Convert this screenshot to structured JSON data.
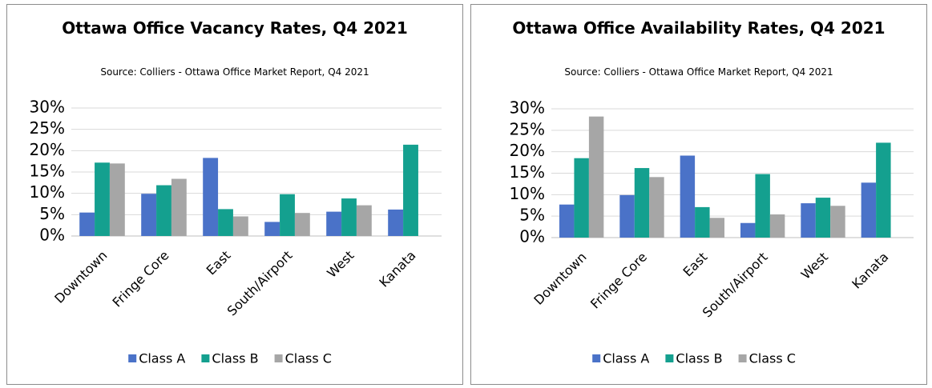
{
  "chart_data": [
    {
      "type": "bar",
      "title": "Ottawa Office Vacancy Rates, Q4 2021",
      "subtitle": "Source: Colliers - Ottawa Office Market Report, Q4 2021",
      "categories": [
        "Downtown",
        "Fringe Core",
        "East",
        "South/Airport",
        "West",
        "Kanata"
      ],
      "series": [
        {
          "name": "Class A",
          "color": "#4a72c8",
          "values": [
            5.5,
            9.9,
            18.3,
            3.3,
            5.7,
            6.2
          ]
        },
        {
          "name": "Class B",
          "color": "#14a08f",
          "values": [
            17.2,
            11.9,
            6.3,
            9.8,
            8.8,
            21.4
          ]
        },
        {
          "name": "Class C",
          "color": "#a6a6a6",
          "values": [
            17.0,
            13.4,
            4.6,
            5.4,
            7.2,
            null
          ]
        }
      ],
      "ylim": [
        0,
        30
      ],
      "yticks": [
        {
          "value": 0,
          "label": "0%"
        },
        {
          "value": 5,
          "label": "5%"
        },
        {
          "value": 10,
          "label": "10%"
        },
        {
          "value": 15,
          "label": "15%"
        },
        {
          "value": 20,
          "label": "20%"
        },
        {
          "value": 25,
          "label": "25%"
        },
        {
          "value": 30,
          "label": "30%"
        }
      ],
      "grid": true,
      "legend": "bottom"
    },
    {
      "type": "bar",
      "title": "Ottawa Office Availability Rates, Q4 2021",
      "subtitle": "Source: Colliers - Ottawa Office Market Report, Q4 2021",
      "categories": [
        "Downtown",
        "Fringe Core",
        "East",
        "South/Airport",
        "West",
        "Kanata"
      ],
      "series": [
        {
          "name": "Class A",
          "color": "#4a72c8",
          "values": [
            7.7,
            9.9,
            19.1,
            3.4,
            8.0,
            12.8
          ]
        },
        {
          "name": "Class B",
          "color": "#14a08f",
          "values": [
            18.5,
            16.2,
            7.1,
            14.8,
            9.3,
            22.1
          ]
        },
        {
          "name": "Class C",
          "color": "#a6a6a6",
          "values": [
            28.2,
            14.1,
            4.6,
            5.4,
            7.4,
            null
          ]
        }
      ],
      "ylim": [
        0,
        30
      ],
      "yticks": [
        {
          "value": 0,
          "label": "0%"
        },
        {
          "value": 5,
          "label": "5%"
        },
        {
          "value": 10,
          "label": "10%"
        },
        {
          "value": 15,
          "label": "15%"
        },
        {
          "value": 20,
          "label": "20%"
        },
        {
          "value": 25,
          "label": "25%"
        },
        {
          "value": 30,
          "label": "30%"
        }
      ],
      "grid": true,
      "legend": "bottom"
    }
  ]
}
